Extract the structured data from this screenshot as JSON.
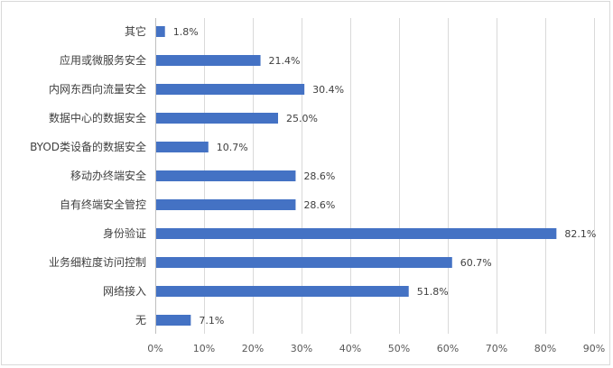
{
  "chart_data": {
    "type": "bar",
    "orientation": "horizontal",
    "categories": [
      "其它",
      "应用或微服务安全",
      "内网东西向流量安全",
      "数据中心的数据安全",
      "BYOD类设备的数据安全",
      "移动办终端安全",
      "自有终端安全管控",
      "身份验证",
      "业务细粒度访问控制",
      "网络接入",
      "无"
    ],
    "values": [
      1.8,
      21.4,
      30.4,
      25.0,
      10.7,
      28.6,
      28.6,
      82.1,
      60.7,
      51.8,
      7.1
    ],
    "value_labels": [
      "1.8%",
      "21.4%",
      "30.4%",
      "25.0%",
      "10.7%",
      "28.6%",
      "28.6%",
      "82.1%",
      "60.7%",
      "51.8%",
      "7.1%"
    ],
    "xlim": [
      0,
      90
    ],
    "xticks": [
      "0%",
      "10%",
      "20%",
      "30%",
      "40%",
      "50%",
      "60%",
      "70%",
      "80%",
      "90%"
    ],
    "grid": true,
    "bar_color": "#4472c4",
    "title": "",
    "xlabel": "",
    "ylabel": ""
  }
}
